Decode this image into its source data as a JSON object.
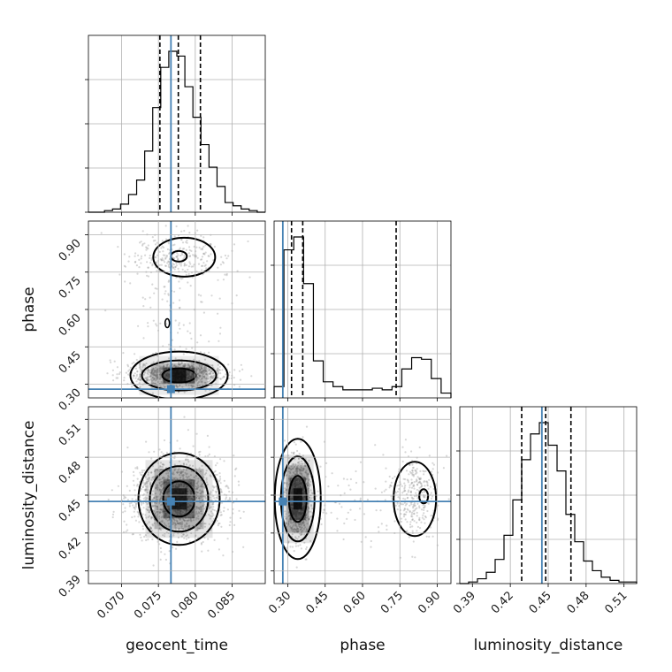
{
  "chart_data": {
    "type": "corner",
    "parameters": [
      "geocent_time",
      "phase",
      "luminosity_distance"
    ],
    "ranges": {
      "geocent_time": [
        0.0655,
        0.0895
      ],
      "phase": [
        0.245,
        0.955
      ],
      "luminosity_distance": [
        0.38,
        0.52
      ]
    },
    "ticks": {
      "geocent_time": {
        "values": [
          0.07,
          0.075,
          0.08,
          0.085
        ],
        "labels": [
          "0.070",
          "0.075",
          "0.080",
          "0.085"
        ]
      },
      "phase": {
        "values": [
          0.3,
          0.45,
          0.6,
          0.75,
          0.9
        ],
        "labels": [
          "0.30",
          "0.45",
          "0.60",
          "0.75",
          "0.90"
        ]
      },
      "luminosity_distance": {
        "values": [
          0.39,
          0.42,
          0.45,
          0.48,
          0.51
        ],
        "labels": [
          "0.39",
          "0.42",
          "0.45",
          "0.48",
          "0.51"
        ]
      }
    },
    "truths": {
      "geocent_time": 0.0767,
      "phase": 0.28,
      "luminosity_distance": 0.445
    },
    "quantiles": {
      "geocent_time": [
        0.0752,
        0.0777,
        0.0807
      ],
      "phase": [
        0.315,
        0.36,
        0.735
      ],
      "luminosity_distance": [
        0.429,
        0.448,
        0.468
      ]
    },
    "histograms": {
      "geocent_time": {
        "edges_range": [
          0.0655,
          0.0895
        ],
        "counts": [
          0.0,
          0.0,
          0.01,
          0.02,
          0.05,
          0.11,
          0.2,
          0.38,
          0.65,
          0.9,
          1.0,
          0.97,
          0.78,
          0.59,
          0.42,
          0.28,
          0.16,
          0.06,
          0.04,
          0.02,
          0.01,
          0.0
        ]
      },
      "phase": {
        "edges_range": [
          0.245,
          0.955
        ],
        "counts": [
          0.07,
          0.92,
          1.0,
          0.71,
          0.23,
          0.1,
          0.07,
          0.05,
          0.05,
          0.05,
          0.06,
          0.05,
          0.07,
          0.18,
          0.25,
          0.24,
          0.12,
          0.03
        ]
      },
      "luminosity_distance": {
        "edges_range": [
          0.38,
          0.52
        ],
        "counts": [
          0.0,
          0.01,
          0.03,
          0.07,
          0.15,
          0.3,
          0.52,
          0.77,
          0.93,
          1.0,
          0.86,
          0.7,
          0.43,
          0.26,
          0.14,
          0.08,
          0.04,
          0.02,
          0.01,
          0.01
        ]
      }
    },
    "grid": true,
    "colors": {
      "truth": "#4682b4",
      "hist": "#000000",
      "contour": "#000000",
      "samples": "#8c8c8c"
    }
  }
}
